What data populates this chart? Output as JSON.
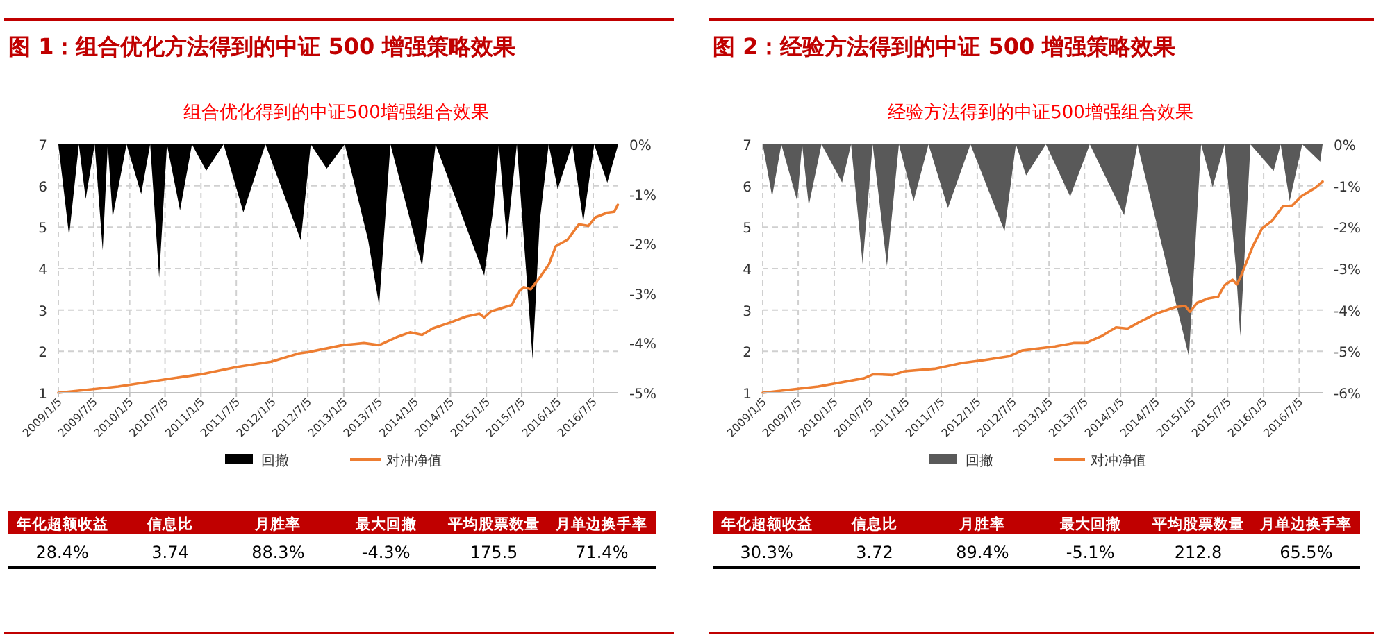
{
  "chart_data": [
    {
      "type": "line",
      "title": "图 1：组合优化方法得到的中证 500 增强策略效果",
      "subtitle": "组合优化得到的中证500增强组合效果",
      "xlim": [
        "2009-01-05",
        "2016-11-10"
      ],
      "xticks": [
        {
          "value": "2009-01-05",
          "label": "2009/1/5"
        },
        {
          "value": "2009-07-05",
          "label": "2009/7/5"
        },
        {
          "value": "2010-01-05",
          "label": "2010/1/5"
        },
        {
          "value": "2010-07-05",
          "label": "2010/7/5"
        },
        {
          "value": "2011-01-05",
          "label": "2011/1/5"
        },
        {
          "value": "2011-07-05",
          "label": "2011/7/5"
        },
        {
          "value": "2012-01-05",
          "label": "2012/1/5"
        },
        {
          "value": "2012-07-05",
          "label": "2012/7/5"
        },
        {
          "value": "2013-01-05",
          "label": "2013/1/5"
        },
        {
          "value": "2013-07-05",
          "label": "2013/7/5"
        },
        {
          "value": "2014-01-05",
          "label": "2014/1/5"
        },
        {
          "value": "2014-07-05",
          "label": "2014/7/5"
        },
        {
          "value": "2015-01-05",
          "label": "2015/1/5"
        },
        {
          "value": "2015-07-05",
          "label": "2015/7/5"
        },
        {
          "value": "2016-01-05",
          "label": "2016/1/5"
        },
        {
          "value": "2016-07-05",
          "label": "2016/7/5"
        }
      ],
      "ylim": [
        1,
        7
      ],
      "yticks": [
        1,
        2,
        3,
        4,
        5,
        6,
        7
      ],
      "y2lim": [
        -5,
        0
      ],
      "y2ticks": [
        {
          "value": -5,
          "label": "-5%"
        },
        {
          "value": -4,
          "label": "-4%"
        },
        {
          "value": -3,
          "label": "-3%"
        },
        {
          "value": -2,
          "label": "-2%"
        },
        {
          "value": -1,
          "label": "-1%"
        },
        {
          "value": 0,
          "label": "0%"
        }
      ],
      "grid": true,
      "legend": "bottom",
      "series": [
        {
          "name": "回撤",
          "type": "area",
          "axis": "y2",
          "color": "#000000",
          "x": [
            "2009-01-05",
            "2009-03-01",
            "2009-04-20",
            "2009-05-25",
            "2009-07-10",
            "2009-08-20",
            "2009-09-15",
            "2009-10-10",
            "2009-12-20",
            "2010-03-05",
            "2010-04-20",
            "2010-06-05",
            "2010-07-15",
            "2010-09-20",
            "2010-11-20",
            "2011-02-01",
            "2011-05-01",
            "2011-08-10",
            "2011-12-01",
            "2012-05-30",
            "2012-07-20",
            "2012-10-10",
            "2013-01-10",
            "2013-05-10",
            "2013-07-05",
            "2013-09-01",
            "2014-02-10",
            "2014-04-20",
            "2014-12-25",
            "2015-02-10",
            "2015-03-10",
            "2015-04-20",
            "2015-06-10",
            "2015-07-30",
            "2015-08-30",
            "2015-10-05",
            "2015-11-20",
            "2016-01-05",
            "2016-03-20",
            "2016-05-15",
            "2016-07-10",
            "2016-09-15",
            "2016-11-10"
          ],
          "values": [
            0,
            -1.84,
            0,
            -1.1,
            0,
            -2.13,
            0,
            -1.47,
            0,
            -1.0,
            0,
            -2.68,
            0,
            -1.33,
            0,
            -0.53,
            0,
            -1.37,
            0,
            -1.93,
            0,
            -0.49,
            0,
            -1.93,
            -3.24,
            0,
            -2.45,
            0,
            -2.64,
            -1.28,
            0,
            -1.93,
            0,
            -2.68,
            -4.32,
            -1.56,
            0,
            -0.9,
            0,
            -1.56,
            0,
            -0.77,
            0
          ]
        },
        {
          "name": "对冲净值",
          "type": "line",
          "color": "#ed7d31",
          "x": [
            "2009-01-05",
            "2009-11-08",
            "2010-06-30",
            "2011-01-08",
            "2011-07-05",
            "2011-12-30",
            "2012-05-20",
            "2012-07-05",
            "2012-12-30",
            "2013-04-18",
            "2013-07-05",
            "2013-10-01",
            "2013-12-10",
            "2014-02-10",
            "2014-04-08",
            "2014-06-30",
            "2014-09-22",
            "2014-12-01",
            "2014-12-25",
            "2015-01-30",
            "2015-05-15",
            "2015-06-20",
            "2015-07-15",
            "2015-08-20",
            "2015-10-05",
            "2015-11-22",
            "2015-12-26",
            "2016-02-25",
            "2016-04-23",
            "2016-06-10",
            "2016-07-17",
            "2016-09-15",
            "2016-10-20",
            "2016-11-08"
          ],
          "values": [
            1.0,
            1.15,
            1.32,
            1.45,
            1.62,
            1.75,
            1.95,
            1.98,
            2.15,
            2.2,
            2.15,
            2.34,
            2.46,
            2.4,
            2.56,
            2.69,
            2.84,
            2.91,
            2.82,
            2.97,
            3.12,
            3.44,
            3.55,
            3.5,
            3.78,
            4.11,
            4.54,
            4.7,
            5.07,
            5.03,
            5.24,
            5.35,
            5.37,
            5.54
          ]
        }
      ]
    },
    {
      "type": "other",
      "categories": [
        "年化超额收益",
        "信息比",
        "月胜率",
        "最大回撤",
        "平均股票数量",
        "月单边换手率"
      ],
      "value_labels": [
        "28.4%",
        "3.74",
        "88.3%",
        "-4.3%",
        "175.5",
        "71.4%"
      ]
    },
    {
      "type": "line",
      "title": "图 2：经验方法得到的中证 500 增强策略效果",
      "subtitle": "经验方法得到的中证500增强组合效果",
      "xlim": [
        "2009-01-05",
        "2016-11-01"
      ],
      "xticks": [
        {
          "value": "2009-01-05",
          "label": "2009/1/5"
        },
        {
          "value": "2009-07-05",
          "label": "2009/7/5"
        },
        {
          "value": "2010-01-05",
          "label": "2010/1/5"
        },
        {
          "value": "2010-07-05",
          "label": "2010/7/5"
        },
        {
          "value": "2011-01-05",
          "label": "2011/1/5"
        },
        {
          "value": "2011-07-05",
          "label": "2011/7/5"
        },
        {
          "value": "2012-01-05",
          "label": "2012/1/5"
        },
        {
          "value": "2012-07-05",
          "label": "2012/7/5"
        },
        {
          "value": "2013-01-05",
          "label": "2013/1/5"
        },
        {
          "value": "2013-07-05",
          "label": "2013/7/5"
        },
        {
          "value": "2014-01-05",
          "label": "2014/1/5"
        },
        {
          "value": "2014-07-05",
          "label": "2014/7/5"
        },
        {
          "value": "2015-01-05",
          "label": "2015/1/5"
        },
        {
          "value": "2015-07-05",
          "label": "2015/7/5"
        },
        {
          "value": "2016-01-05",
          "label": "2016/1/5"
        },
        {
          "value": "2016-07-05",
          "label": "2016/7/5"
        }
      ],
      "ylim": [
        1,
        7
      ],
      "yticks": [
        1,
        2,
        3,
        4,
        5,
        6,
        7
      ],
      "y2lim": [
        -6,
        0
      ],
      "y2ticks": [
        {
          "value": -6,
          "label": "-6%"
        },
        {
          "value": -5,
          "label": "-5%"
        },
        {
          "value": -4,
          "label": "-4%"
        },
        {
          "value": -3,
          "label": "-3%"
        },
        {
          "value": -2,
          "label": "-2%"
        },
        {
          "value": -1,
          "label": "-1%"
        },
        {
          "value": 0,
          "label": "0%"
        }
      ],
      "grid": true,
      "legend": "bottom",
      "series": [
        {
          "name": "回撤",
          "type": "area",
          "axis": "y2",
          "color": "#595959",
          "x": [
            "2009-01-05",
            "2009-02-22",
            "2009-04-10",
            "2009-06-30",
            "2009-07-25",
            "2009-08-28",
            "2009-11-01",
            "2010-02-14",
            "2010-04-01",
            "2010-05-30",
            "2010-07-20",
            "2010-10-01",
            "2010-12-01",
            "2011-02-14",
            "2011-05-01",
            "2011-08-08",
            "2011-12-01",
            "2012-05-23",
            "2012-07-20",
            "2012-09-10",
            "2012-12-20",
            "2013-04-23",
            "2013-08-01",
            "2014-01-23",
            "2014-04-01",
            "2014-12-20",
            "2015-02-20",
            "2015-04-20",
            "2015-06-20",
            "2015-08-17",
            "2015-09-08",
            "2015-10-30",
            "2016-02-25",
            "2016-04-01",
            "2016-05-17",
            "2016-07-20",
            "2016-10-20",
            "2016-11-01"
          ],
          "values": [
            0,
            -1.26,
            0,
            -1.37,
            0,
            -1.48,
            0,
            -0.92,
            0,
            -2.89,
            0,
            -2.94,
            0,
            -1.37,
            0,
            -1.54,
            0,
            -2.1,
            0,
            -0.75,
            0,
            -1.26,
            0,
            -1.71,
            0,
            -5.13,
            0,
            -1.03,
            0,
            -3.0,
            -4.63,
            0,
            -0.64,
            0,
            -1.37,
            0,
            -0.42,
            0
          ]
        },
        {
          "name": "对冲净值",
          "type": "line",
          "color": "#ed7d31",
          "x": [
            "2009-01-05",
            "2009-10-15",
            "2010-06-05",
            "2010-07-25",
            "2010-10-30",
            "2010-12-30",
            "2011-06-01",
            "2011-10-20",
            "2012-01-25",
            "2012-06-15",
            "2012-08-20",
            "2013-02-05",
            "2013-05-10",
            "2013-07-10",
            "2013-10-01",
            "2013-12-13",
            "2014-02-10",
            "2014-04-08",
            "2014-07-10",
            "2014-10-12",
            "2014-12-01",
            "2014-12-25",
            "2015-01-30",
            "2015-03-30",
            "2015-05-18",
            "2015-06-20",
            "2015-07-30",
            "2015-08-22",
            "2015-09-14",
            "2015-11-12",
            "2015-12-28",
            "2016-02-16",
            "2016-04-12",
            "2016-05-30",
            "2016-07-17",
            "2016-09-25",
            "2016-11-01"
          ],
          "values": [
            1.0,
            1.15,
            1.35,
            1.45,
            1.43,
            1.52,
            1.58,
            1.72,
            1.78,
            1.88,
            2.02,
            2.12,
            2.2,
            2.2,
            2.37,
            2.58,
            2.55,
            2.7,
            2.92,
            3.07,
            3.1,
            2.96,
            3.17,
            3.28,
            3.32,
            3.6,
            3.73,
            3.62,
            3.85,
            4.55,
            4.97,
            5.15,
            5.5,
            5.52,
            5.75,
            5.95,
            6.1
          ]
        }
      ]
    },
    {
      "type": "other",
      "categories": [
        "年化超额收益",
        "信息比",
        "月胜率",
        "最大回撤",
        "平均股票数量",
        "月单边换手率"
      ],
      "value_labels": [
        "30.3%",
        "3.72",
        "89.4%",
        "-5.1%",
        "212.8",
        "65.5%"
      ]
    }
  ]
}
